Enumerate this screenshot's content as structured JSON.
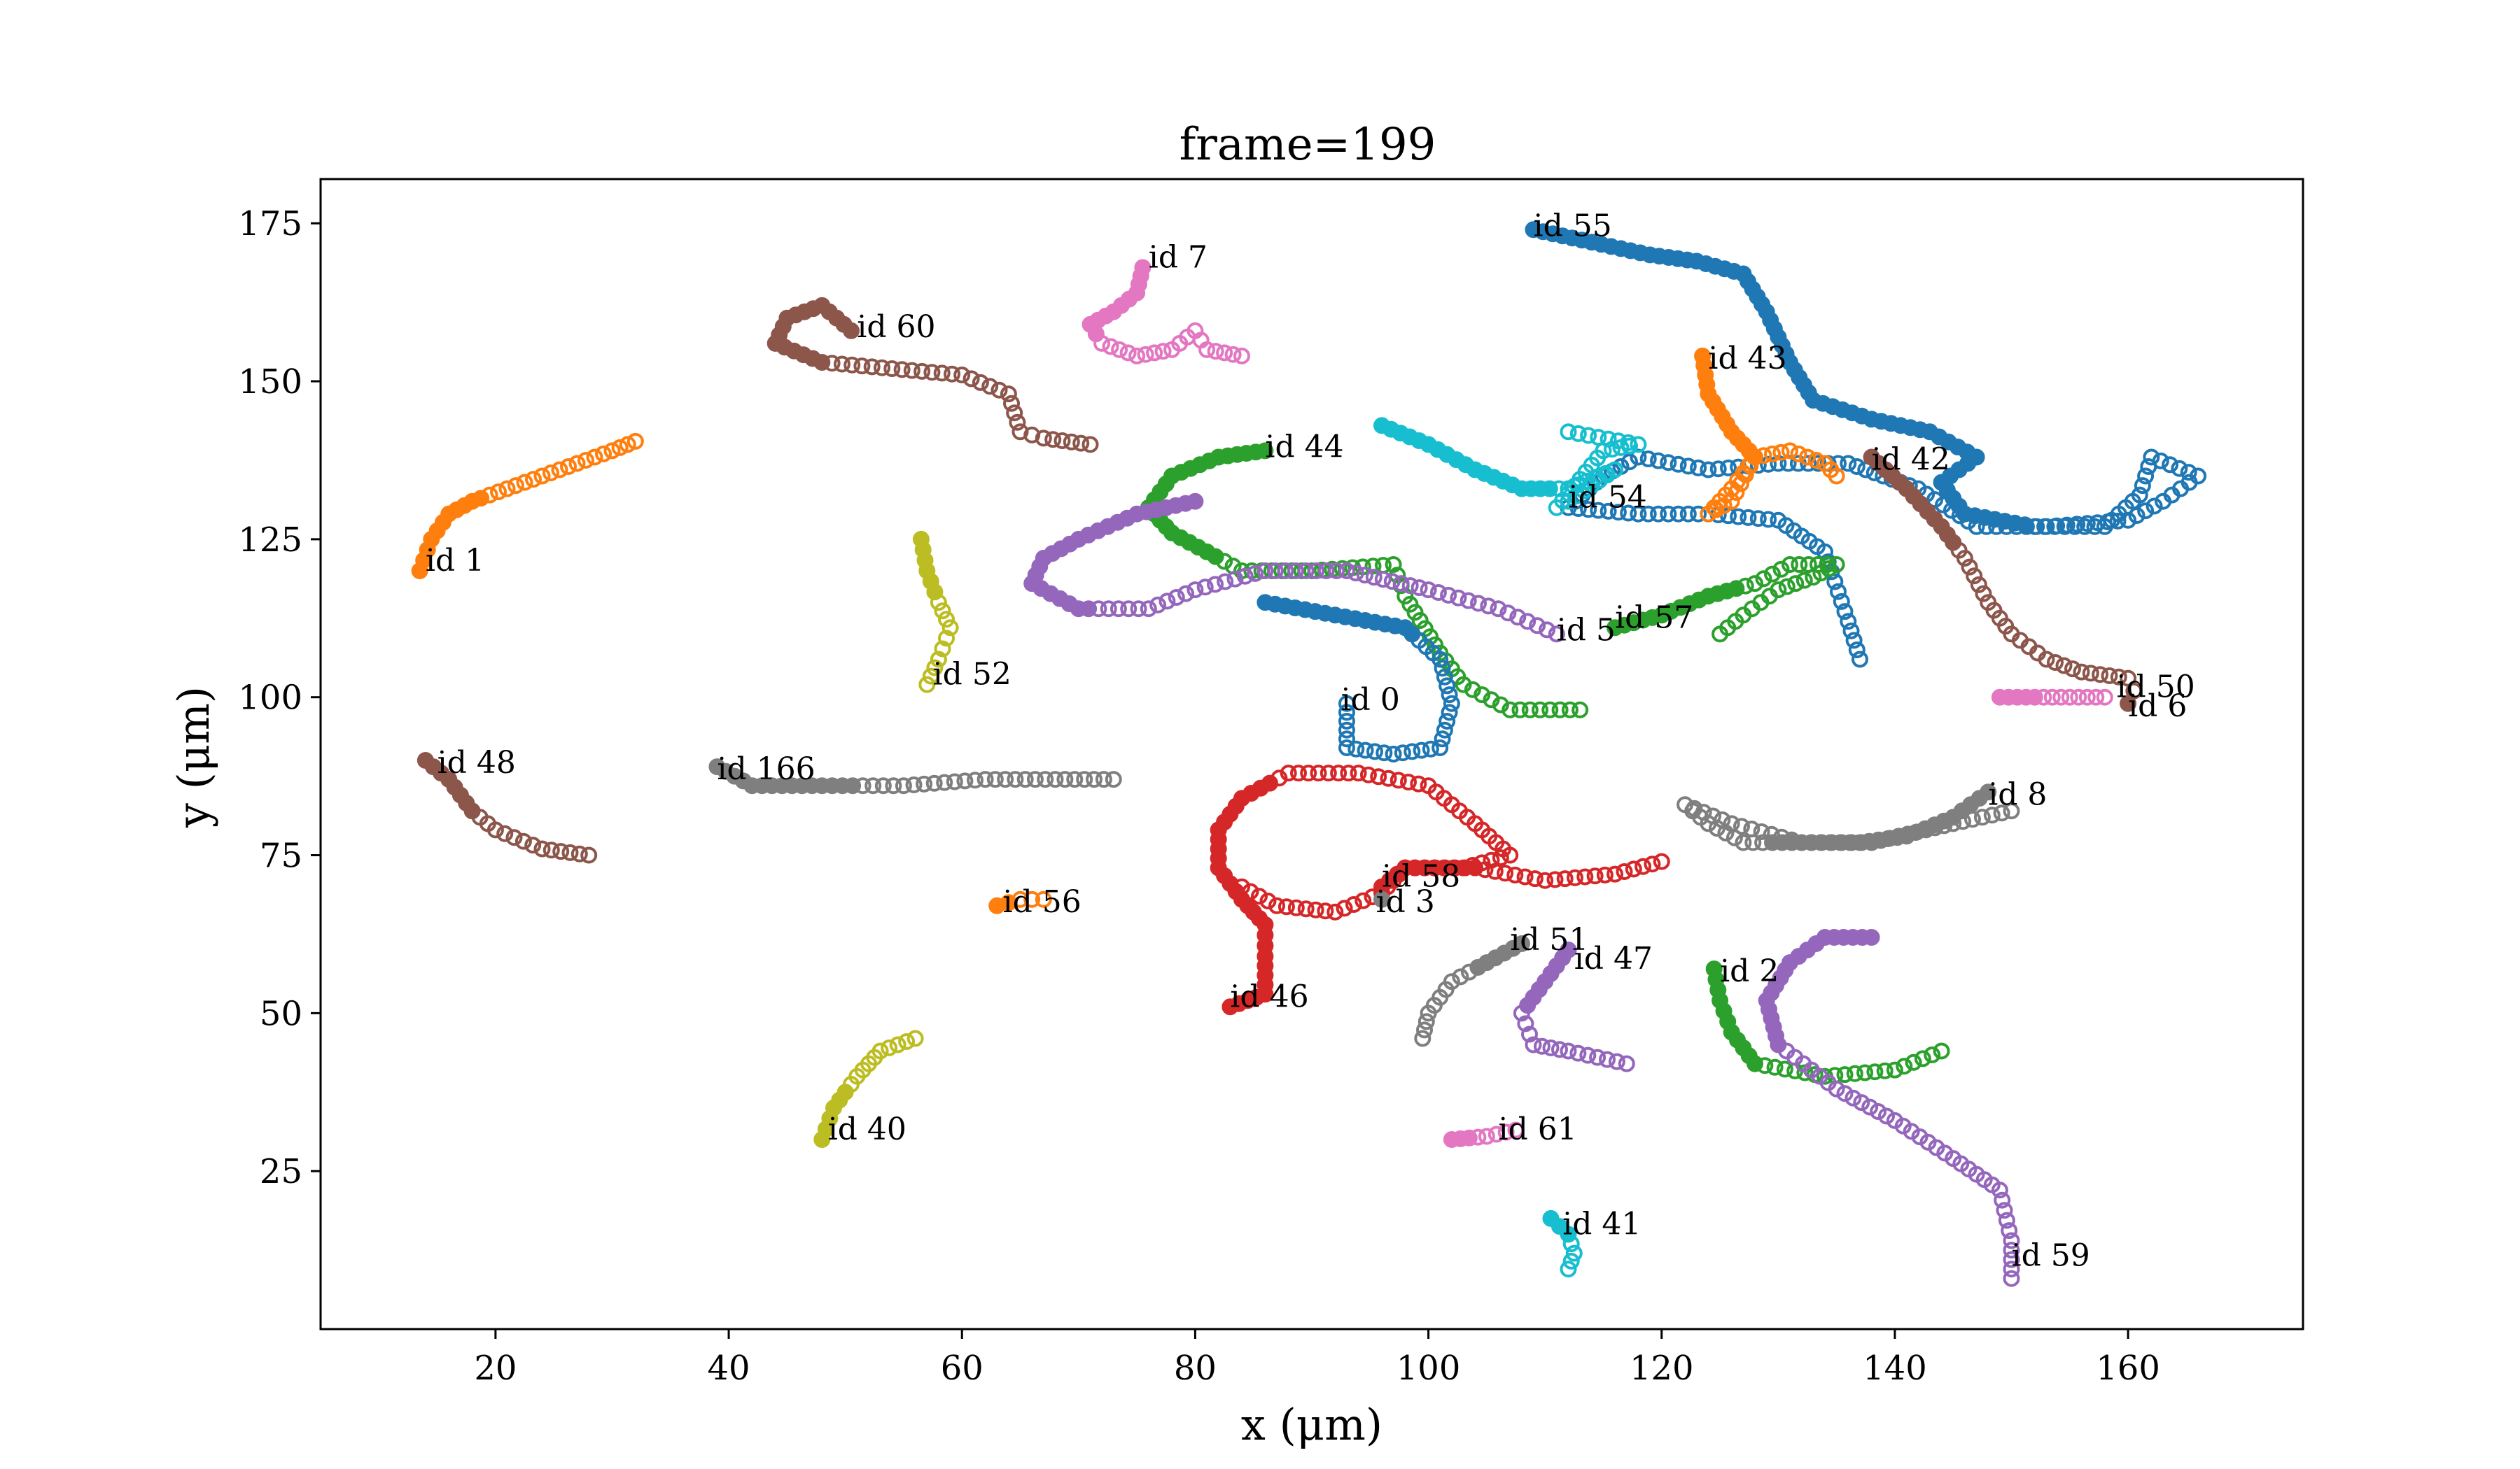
{
  "chart_data": {
    "type": "scatter",
    "title": "frame=199",
    "xlabel": "x (μm)",
    "ylabel": "y (μm)",
    "xlim": [
      5,
      175
    ],
    "ylim": [
      0,
      182
    ],
    "xticks": [
      20,
      40,
      60,
      80,
      100,
      120,
      140,
      160
    ],
    "yticks": [
      25,
      50,
      75,
      100,
      125,
      150,
      175
    ],
    "grid": false,
    "series": [
      {
        "name": "id 1",
        "color": "#ff7f0e",
        "points": [
          [
            13.5,
            120
          ],
          [
            14.5,
            125
          ],
          [
            16,
            129
          ],
          [
            18,
            131
          ],
          [
            21,
            133
          ],
          [
            24,
            135
          ],
          [
            27,
            137
          ],
          [
            30,
            139
          ],
          [
            32,
            140.5
          ]
        ],
        "label_at": [
          14,
          120
        ]
      },
      {
        "name": "id 60",
        "color": "#8c564b",
        "points": [
          [
            50.5,
            158
          ],
          [
            48,
            162
          ],
          [
            45,
            160
          ],
          [
            44,
            156
          ],
          [
            48,
            153
          ],
          [
            54,
            152
          ],
          [
            60,
            151
          ],
          [
            64,
            148
          ],
          [
            65,
            142
          ],
          [
            67,
            141
          ],
          [
            71,
            140
          ]
        ],
        "label_at": [
          51,
          157
        ]
      },
      {
        "name": "id 7",
        "color": "#e377c2",
        "points": [
          [
            75.5,
            168
          ],
          [
            75,
            164
          ],
          [
            73,
            161
          ],
          [
            71,
            159
          ],
          [
            72,
            156
          ],
          [
            75,
            154
          ],
          [
            78,
            155
          ],
          [
            80,
            158
          ],
          [
            81,
            155
          ],
          [
            84,
            154
          ]
        ],
        "label_at": [
          76,
          168
        ]
      },
      {
        "name": "id 44",
        "color": "#2ca02c",
        "points": [
          [
            86,
            139
          ],
          [
            82,
            138
          ],
          [
            78,
            135
          ],
          [
            76,
            130
          ],
          [
            78,
            126
          ],
          [
            84,
            120
          ],
          [
            90,
            120
          ],
          [
            97,
            121
          ],
          [
            98,
            116
          ],
          [
            101,
            107
          ],
          [
            103,
            102
          ],
          [
            107,
            98
          ],
          [
            113,
            98
          ]
        ],
        "label_at": [
          86,
          138
        ]
      },
      {
        "name": "id 5",
        "color": "#9467bd",
        "points": [
          [
            80,
            131
          ],
          [
            75,
            129
          ],
          [
            70,
            125
          ],
          [
            67,
            122
          ],
          [
            66,
            118
          ],
          [
            70,
            114
          ],
          [
            76,
            114
          ],
          [
            80,
            117
          ],
          [
            86,
            120
          ],
          [
            93,
            120
          ],
          [
            100,
            117
          ],
          [
            106,
            114
          ],
          [
            111,
            110
          ]
        ],
        "label_at": [
          111,
          109
        ]
      },
      {
        "name": "id 52",
        "color": "#bcbd22",
        "points": [
          [
            56.5,
            125
          ],
          [
            57,
            120
          ],
          [
            58,
            115
          ],
          [
            59,
            111
          ],
          [
            58,
            106
          ],
          [
            57,
            102
          ]
        ],
        "label_at": [
          57.5,
          102
        ]
      },
      {
        "name": "id 48",
        "color": "#8c564b",
        "points": [
          [
            14,
            90
          ],
          [
            16,
            87
          ],
          [
            18,
            82
          ],
          [
            20,
            79
          ],
          [
            24,
            76
          ],
          [
            28,
            75
          ]
        ],
        "label_at": [
          15,
          88
        ]
      },
      {
        "name": "id 166",
        "color": "#7f7f7f",
        "points": [
          [
            39,
            89
          ],
          [
            42,
            86
          ],
          [
            48,
            86
          ],
          [
            55,
            86
          ],
          [
            62,
            87
          ],
          [
            68,
            87
          ],
          [
            73,
            87
          ]
        ],
        "label_at": [
          39,
          87
        ]
      },
      {
        "name": "id 56",
        "color": "#ff7f0e",
        "points": [
          [
            63,
            67
          ],
          [
            65,
            68
          ],
          [
            67,
            68
          ]
        ],
        "label_at": [
          63.5,
          66
        ]
      },
      {
        "name": "id 40",
        "color": "#bcbd22",
        "points": [
          [
            48,
            30
          ],
          [
            49,
            35
          ],
          [
            51,
            40
          ],
          [
            53,
            44
          ],
          [
            56,
            46
          ]
        ],
        "label_at": [
          48.5,
          30
        ]
      },
      {
        "name": "id 0",
        "color": "#1f77b4",
        "points": [
          [
            86,
            115
          ],
          [
            92,
            113
          ],
          [
            98,
            111
          ],
          [
            101,
            106
          ],
          [
            102,
            99
          ],
          [
            101,
            92
          ],
          [
            97,
            91
          ],
          [
            93,
            92
          ],
          [
            93,
            99
          ]
        ],
        "label_at": [
          92.5,
          98
        ]
      },
      {
        "name": "id 46",
        "color": "#d62728",
        "points": [
          [
            83,
            51
          ],
          [
            86,
            53
          ],
          [
            86,
            59
          ],
          [
            86,
            64
          ],
          [
            84,
            68
          ],
          [
            82,
            73
          ],
          [
            82,
            79
          ],
          [
            84,
            84
          ],
          [
            88,
            88
          ],
          [
            94,
            88
          ],
          [
            100,
            86
          ],
          [
            104,
            80
          ],
          [
            107,
            75
          ],
          [
            103,
            73
          ],
          [
            98,
            73
          ],
          [
            96,
            69
          ],
          [
            92,
            66
          ],
          [
            87,
            67
          ],
          [
            84,
            70
          ]
        ],
        "label_at": [
          83,
          51
        ]
      },
      {
        "name": "id 58",
        "color": "#d62728",
        "points": [
          [
            96,
            70
          ],
          [
            98,
            73
          ],
          [
            104,
            73
          ],
          [
            110,
            71
          ],
          [
            116,
            72
          ],
          [
            120,
            74
          ]
        ],
        "label_at": [
          96,
          70
        ]
      },
      {
        "name": "id 55",
        "color": "#1f77b4",
        "points": [
          [
            109,
            174
          ],
          [
            114,
            172
          ],
          [
            119,
            170
          ],
          [
            123,
            169
          ],
          [
            127,
            167
          ],
          [
            129,
            161
          ],
          [
            131,
            153
          ],
          [
            133,
            147
          ],
          [
            138,
            144
          ],
          [
            143,
            142
          ],
          [
            147,
            138
          ],
          [
            144,
            134
          ],
          [
            146,
            129
          ],
          [
            152,
            127
          ],
          [
            158,
            127
          ],
          [
            161,
            132
          ],
          [
            162,
            138
          ],
          [
            166,
            135
          ],
          [
            163,
            131
          ],
          [
            160,
            128
          ],
          [
            153,
            127
          ],
          [
            147,
            127
          ],
          [
            142,
            133
          ],
          [
            136,
            137
          ],
          [
            130,
            137
          ],
          [
            124,
            136
          ],
          [
            118,
            138
          ],
          [
            115,
            135
          ],
          [
            112,
            130
          ],
          [
            118,
            129
          ],
          [
            124,
            129
          ],
          [
            130,
            128
          ],
          [
            134,
            123
          ],
          [
            136,
            112
          ],
          [
            137,
            106
          ]
        ],
        "label_at": [
          109,
          173
        ]
      },
      {
        "name": "id 43",
        "color": "#ff7f0e",
        "points": [
          [
            123.5,
            154
          ],
          [
            124,
            148
          ],
          [
            126,
            142
          ],
          [
            128,
            138
          ],
          [
            126,
            133
          ],
          [
            124,
            129
          ],
          [
            126,
            131
          ],
          [
            128,
            138
          ],
          [
            131,
            139
          ],
          [
            134,
            137
          ],
          [
            135,
            135
          ]
        ],
        "label_at": [
          124,
          152
        ]
      },
      {
        "name": "id 54",
        "color": "#17becf",
        "points": [
          [
            96,
            143
          ],
          [
            100,
            140
          ],
          [
            104,
            136
          ],
          [
            108,
            133
          ],
          [
            112,
            133
          ],
          [
            116,
            136
          ],
          [
            112,
            131
          ],
          [
            111,
            130
          ],
          [
            115,
            139
          ],
          [
            118,
            140
          ],
          [
            112,
            142
          ]
        ],
        "label_at": [
          112,
          130
        ]
      },
      {
        "name": "id 42",
        "color": "#8c564b",
        "points": [
          [
            138,
            138
          ],
          [
            141,
            133
          ],
          [
            144,
            127
          ],
          [
            146,
            122
          ],
          [
            148,
            115
          ],
          [
            150,
            110
          ],
          [
            153,
            106
          ],
          [
            156,
            104
          ],
          [
            160,
            103
          ]
        ],
        "label_at": [
          138,
          136
        ]
      },
      {
        "name": "id 57",
        "color": "#2ca02c",
        "points": [
          [
            116,
            111
          ],
          [
            120,
            113
          ],
          [
            124,
            116
          ],
          [
            128,
            118
          ],
          [
            131,
            121
          ],
          [
            135,
            121
          ],
          [
            133,
            119
          ],
          [
            130,
            117
          ],
          [
            127,
            113
          ],
          [
            125,
            110
          ]
        ],
        "label_at": [
          116,
          111
        ]
      },
      {
        "name": "id 50",
        "color": "#e377c2",
        "points": [
          [
            149,
            100
          ],
          [
            152,
            100
          ],
          [
            155,
            100
          ],
          [
            158,
            100
          ]
        ],
        "label_at": [
          159,
          100
        ]
      },
      {
        "name": "id 6",
        "color": "#8c564b",
        "points": [
          [
            160,
            99
          ],
          [
            160.5,
            101
          ]
        ],
        "label_at": [
          160,
          97
        ]
      },
      {
        "name": "id 8",
        "color": "#7f7f7f",
        "points": [
          [
            148,
            85
          ],
          [
            145,
            81
          ],
          [
            141,
            78
          ],
          [
            137,
            77
          ],
          [
            132,
            77
          ],
          [
            127,
            77
          ],
          [
            124,
            80
          ],
          [
            122,
            83
          ],
          [
            126,
            80
          ],
          [
            132,
            77
          ],
          [
            138,
            77
          ],
          [
            145,
            80
          ],
          [
            150,
            82
          ]
        ],
        "label_at": [
          148,
          83
        ]
      },
      {
        "name": "id 3",
        "color": "#7f7f7f",
        "points": [
          [
            96,
            68
          ]
        ],
        "label_at": [
          95.5,
          66
        ]
      },
      {
        "name": "id 51",
        "color": "#7f7f7f",
        "points": [
          [
            108,
            61
          ],
          [
            105,
            58
          ],
          [
            102,
            55
          ],
          [
            100,
            50
          ],
          [
            99.5,
            46
          ]
        ],
        "label_at": [
          107,
          60
        ]
      },
      {
        "name": "id 47",
        "color": "#9467bd",
        "points": [
          [
            112,
            60
          ],
          [
            110,
            55
          ],
          [
            108,
            50
          ],
          [
            109,
            45
          ],
          [
            112,
            44
          ],
          [
            117,
            42
          ]
        ],
        "label_at": [
          112.5,
          57
        ]
      },
      {
        "name": "id 2",
        "color": "#2ca02c",
        "points": [
          [
            124.5,
            57
          ],
          [
            125,
            52
          ],
          [
            126,
            47
          ],
          [
            128,
            42
          ],
          [
            134,
            40
          ],
          [
            140,
            41
          ],
          [
            144,
            44
          ]
        ],
        "label_at": [
          125,
          55
        ]
      },
      {
        "name": "id 59",
        "color": "#9467bd",
        "points": [
          [
            138,
            62
          ],
          [
            134,
            62
          ],
          [
            131,
            58
          ],
          [
            129,
            52
          ],
          [
            130,
            45
          ],
          [
            135,
            38
          ],
          [
            140,
            33
          ],
          [
            145,
            27
          ],
          [
            149,
            22
          ],
          [
            150,
            14
          ],
          [
            150,
            8
          ]
        ],
        "label_at": [
          150,
          10
        ]
      },
      {
        "name": "id 61",
        "color": "#e377c2",
        "points": [
          [
            102,
            30
          ],
          [
            105,
            30.5
          ],
          [
            107.5,
            31.5
          ]
        ],
        "label_at": [
          106,
          30
        ]
      },
      {
        "name": "id 41",
        "color": "#17becf",
        "points": [
          [
            110.5,
            17.5
          ],
          [
            112,
            15
          ],
          [
            112.5,
            12
          ],
          [
            112,
            9.5
          ]
        ],
        "label_at": [
          111.5,
          15
        ]
      }
    ]
  }
}
